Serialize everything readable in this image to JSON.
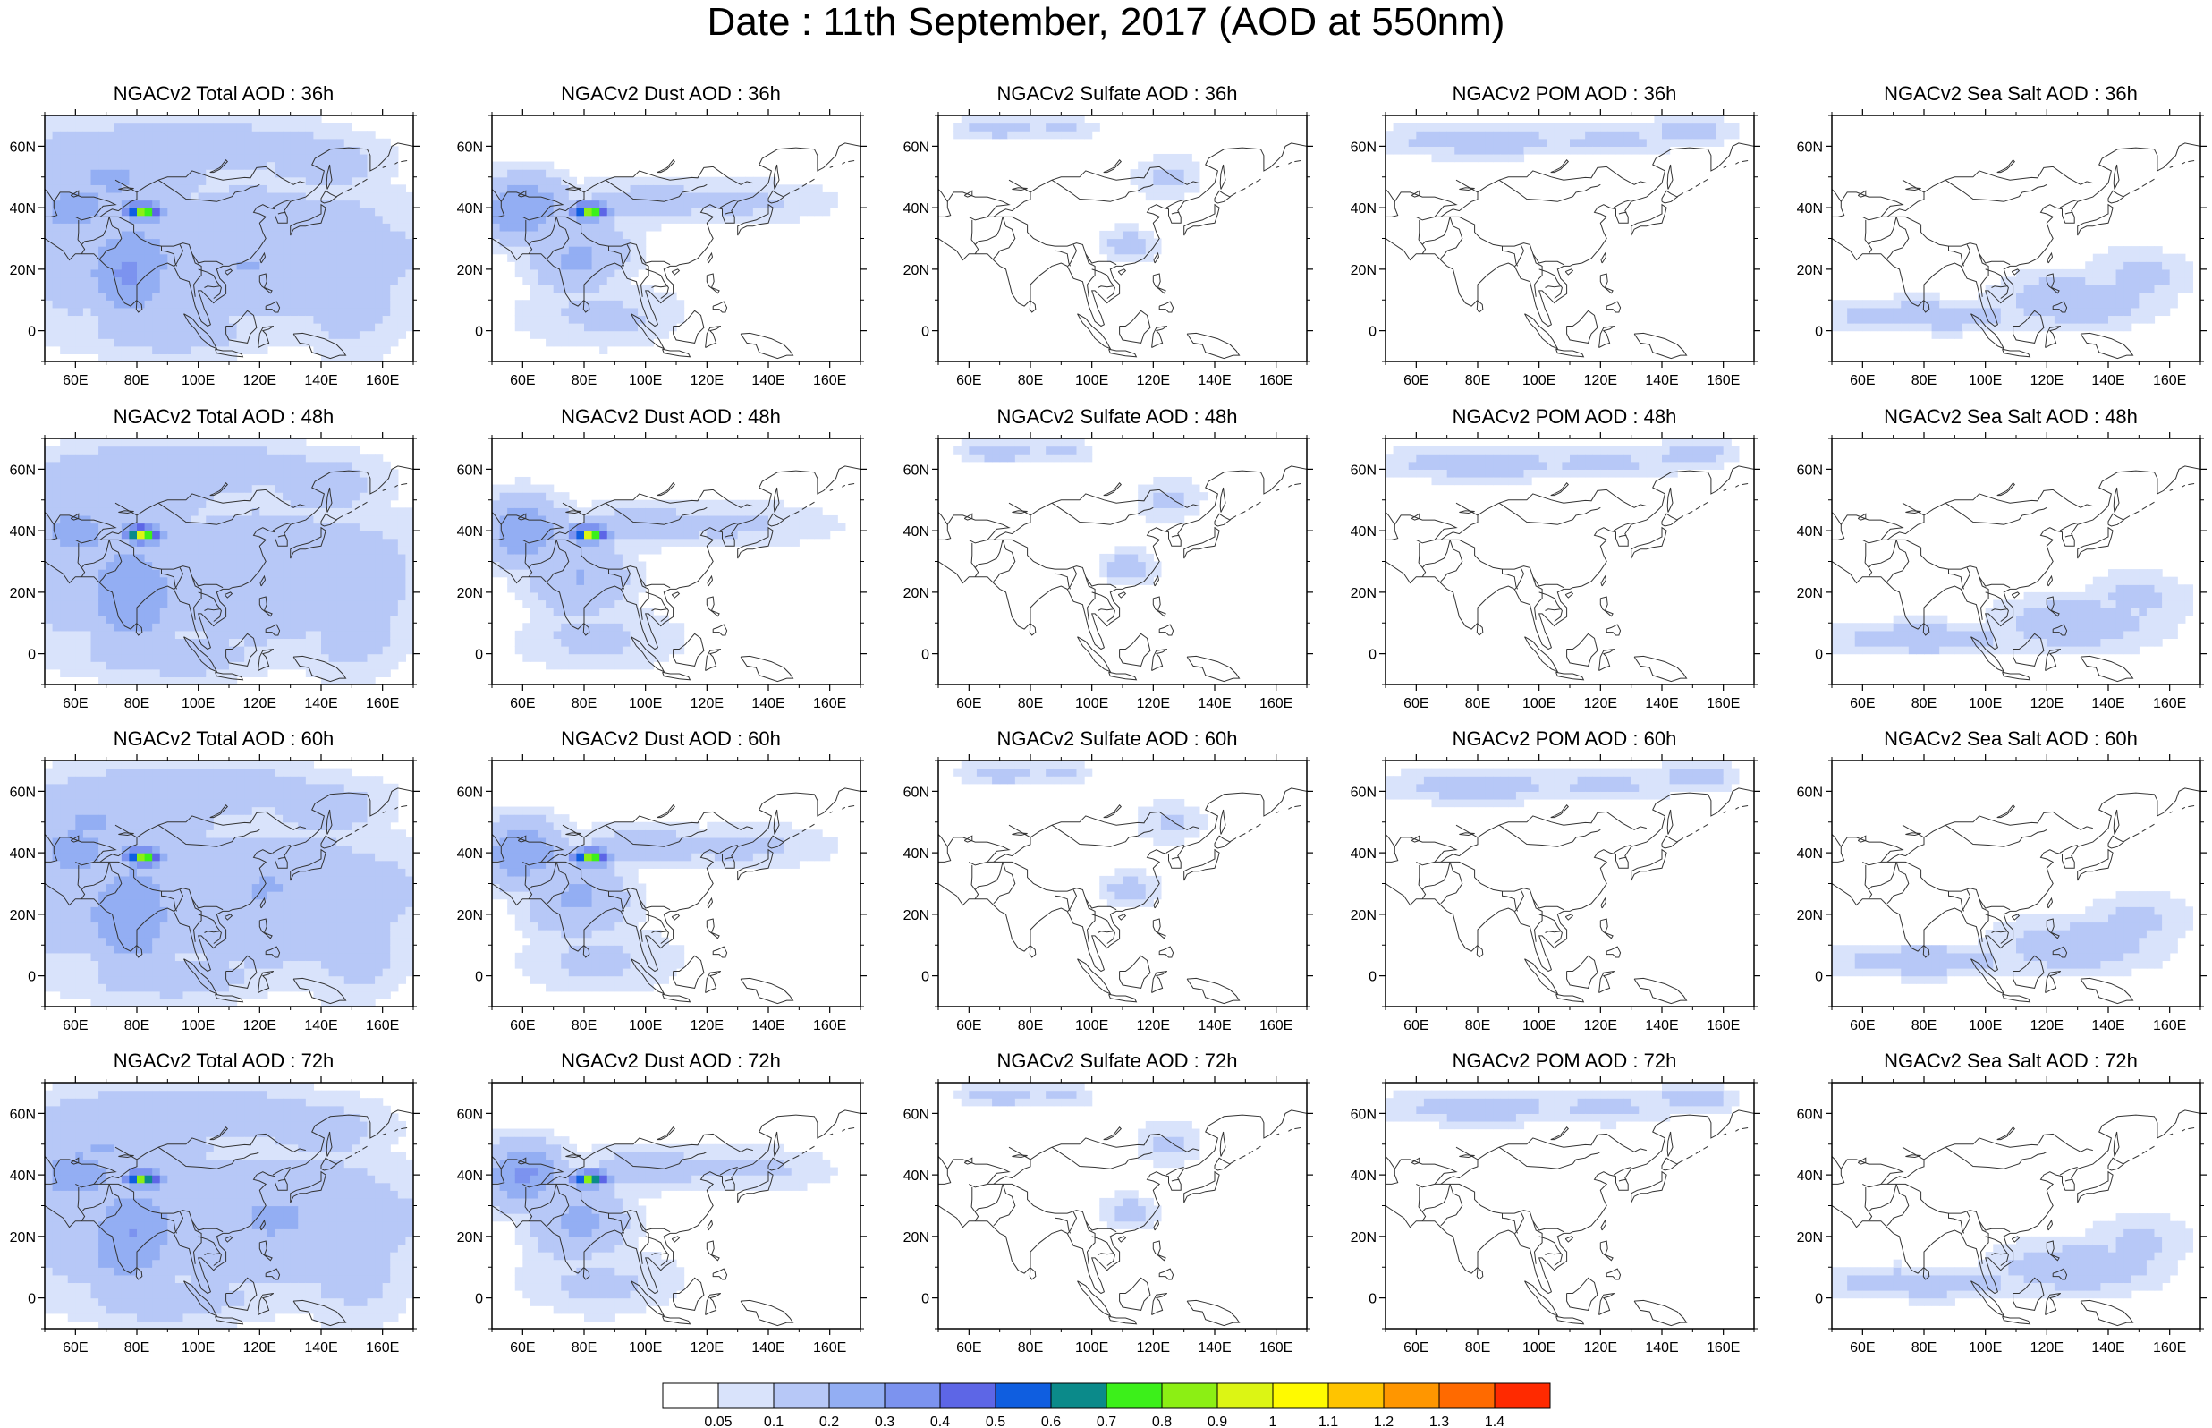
{
  "title": "Date : 11th September, 2017 (AOD at 550nm)",
  "panels": [
    [
      "NGACv2 Total AOD : 36h",
      "NGACv2 Dust AOD : 36h",
      "NGACv2 Sulfate AOD : 36h",
      "NGACv2 POM AOD : 36h",
      "NGACv2 Sea Salt AOD : 36h"
    ],
    [
      "NGACv2 Total AOD : 48h",
      "NGACv2 Dust AOD : 48h",
      "NGACv2 Sulfate AOD : 48h",
      "NGACv2 POM AOD : 48h",
      "NGACv2 Sea Salt AOD : 48h"
    ],
    [
      "NGACv2 Total AOD : 60h",
      "NGACv2 Dust AOD : 60h",
      "NGACv2 Sulfate AOD : 60h",
      "NGACv2 POM AOD : 60h",
      "NGACv2 Sea Salt AOD : 60h"
    ],
    [
      "NGACv2 Total AOD : 72h",
      "NGACv2 Dust AOD : 72h",
      "NGACv2 Sulfate AOD : 72h",
      "NGACv2 POM AOD : 72h",
      "NGACv2 Sea Salt  AOD : 72h"
    ]
  ],
  "map": {
    "lon_range": [
      50,
      170
    ],
    "lat_range": [
      -10,
      70
    ],
    "lon_ticks": [
      "60E",
      "80E",
      "100E",
      "120E",
      "140E",
      "160E"
    ],
    "lon_tick_values": [
      60,
      80,
      100,
      120,
      140,
      160
    ],
    "lat_ticks": [
      "60N",
      "40N",
      "20N",
      "0"
    ],
    "lat_tick_values": [
      60,
      40,
      20,
      0
    ]
  },
  "colorbar": {
    "labels": [
      "0.05",
      "0.1",
      "0.2",
      "0.3",
      "0.4",
      "0.5",
      "0.6",
      "0.7",
      "0.8",
      "0.9",
      "1",
      "1.1",
      "1.2",
      "1.3",
      "1.4"
    ],
    "colors": [
      "#ffffff",
      "#d9e3fb",
      "#b7c8f7",
      "#93aef3",
      "#7c93ef",
      "#5d66e6",
      "#0f5ee0",
      "#0b8a8a",
      "#3cf01a",
      "#8cef14",
      "#dcf514",
      "#fffa00",
      "#ffc400",
      "#ff9600",
      "#ff6a00",
      "#ff2a00"
    ]
  },
  "fields": {
    "Total": [
      [
        60,
        40,
        0.25,
        18,
        12
      ],
      [
        78,
        20,
        0.3,
        18,
        20
      ],
      [
        70,
        50,
        0.2,
        40,
        15
      ],
      [
        95,
        60,
        0.18,
        60,
        10
      ],
      [
        60,
        20,
        0.18,
        20,
        18
      ],
      [
        120,
        25,
        0.2,
        60,
        25
      ],
      [
        150,
        10,
        0.15,
        20,
        20
      ],
      [
        90,
        0,
        0.15,
        40,
        10
      ],
      [
        82,
        39,
        0.9,
        4,
        2
      ],
      [
        82,
        39,
        0.7,
        7,
        3
      ],
      [
        140,
        55,
        0.15,
        25,
        12
      ]
    ],
    "Dust": [
      [
        60,
        40,
        0.3,
        15,
        12
      ],
      [
        78,
        25,
        0.22,
        18,
        14
      ],
      [
        85,
        5,
        0.12,
        30,
        12
      ],
      [
        100,
        42,
        0.15,
        30,
        8
      ],
      [
        130,
        42,
        0.12,
        35,
        8
      ],
      [
        82,
        39,
        0.9,
        4,
        2
      ],
      [
        82,
        39,
        0.65,
        7,
        3
      ]
    ],
    "Sulfate": [
      [
        70,
        66,
        0.15,
        15,
        4
      ],
      [
        90,
        66,
        0.12,
        12,
        4
      ],
      [
        112,
        28,
        0.15,
        10,
        6
      ],
      [
        125,
        50,
        0.12,
        12,
        8
      ]
    ],
    "POM": [
      [
        80,
        62,
        0.15,
        35,
        6
      ],
      [
        120,
        62,
        0.12,
        30,
        6
      ],
      [
        150,
        65,
        0.15,
        15,
        5
      ]
    ],
    "SeaSalt": [
      [
        80,
        5,
        0.15,
        40,
        6
      ],
      [
        130,
        10,
        0.16,
        30,
        10
      ],
      [
        150,
        18,
        0.12,
        20,
        10
      ]
    ]
  }
}
